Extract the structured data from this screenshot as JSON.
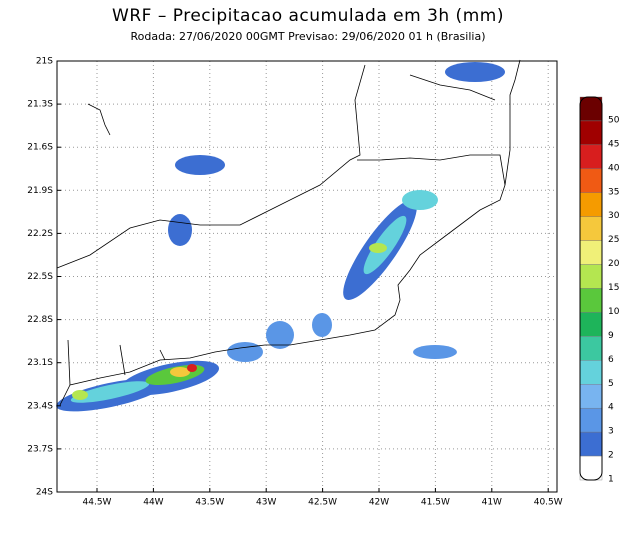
{
  "header": {
    "title": "WRF – Precipitacao acumulada em 3h (mm)",
    "subtitle": "Rodada: 27/06/2020 00GMT  Previsao: 29/06/2020 01 h (Brasilia)"
  },
  "map": {
    "lat_labels": [
      "21S",
      "21.3S",
      "21.6S",
      "21.9S",
      "22.2S",
      "22.5S",
      "22.8S",
      "23.1S",
      "23.4S",
      "23.7S",
      "24S"
    ],
    "lon_labels": [
      "44.5W",
      "44W",
      "43.5W",
      "43W",
      "42.5W",
      "42W",
      "41.5W",
      "41W",
      "40.5W"
    ]
  },
  "colorbar": {
    "labels": [
      "50",
      "45",
      "40",
      "35",
      "30",
      "25",
      "20",
      "15",
      "10",
      "9",
      "6",
      "5",
      "4",
      "3",
      "2",
      "1"
    ],
    "colors": [
      "#6b0000",
      "#a00000",
      "#d81e1e",
      "#f05a14",
      "#f59b00",
      "#f5c83c",
      "#f0f078",
      "#b4e650",
      "#5ac83c",
      "#1eb45a",
      "#3cc8a0",
      "#64d2dc",
      "#78b4f0",
      "#5a96e6",
      "#3c6ed2",
      "#ffffff"
    ]
  }
}
